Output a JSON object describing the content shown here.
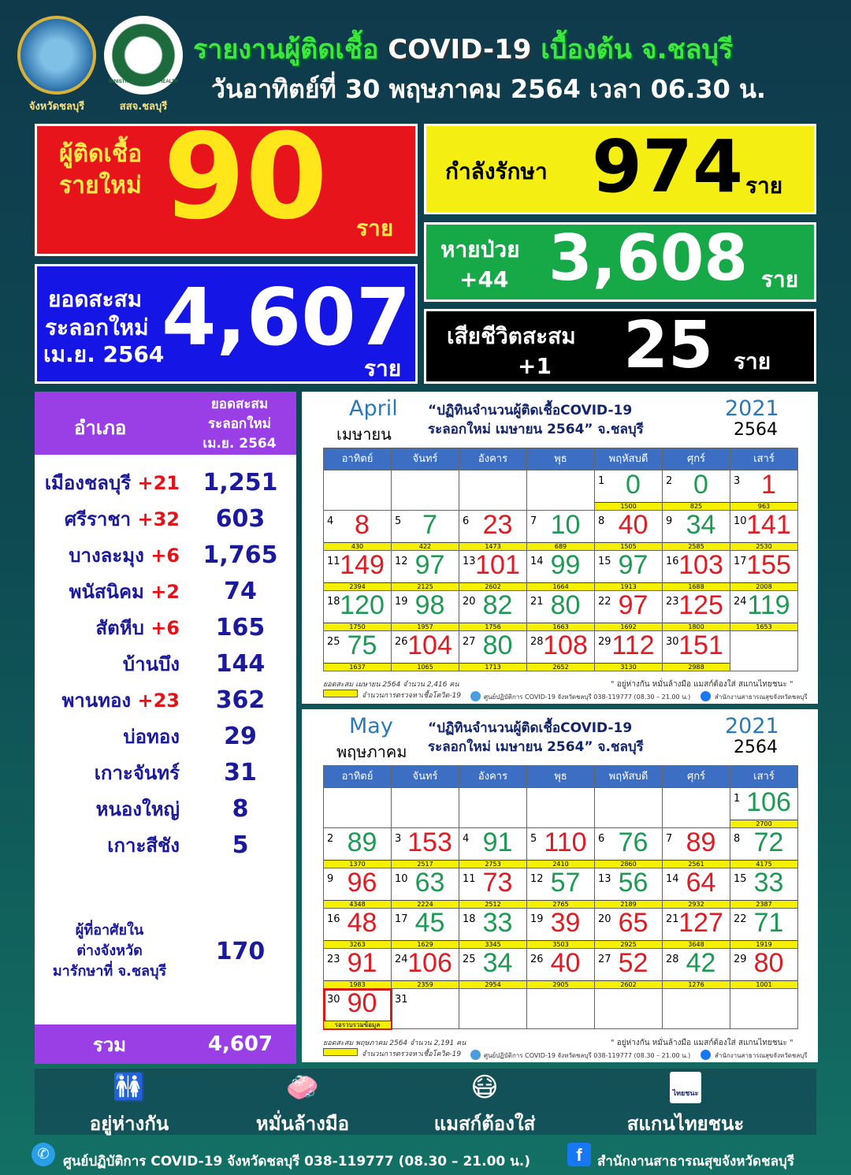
{
  "header": {
    "logo1_caption": "จังหวัดชลบุรี",
    "logo2_caption": "สสจ.ชลบุรี",
    "logo2_text": "MINISTRY OF PUBLIC HEALTH",
    "title_th1": "รายงานผู้ติดเชื้อ",
    "title_en": "COVID-19",
    "title_th2": "เบื้องต้น จ.ชลบุรี",
    "subtitle": "วันอาทิตย์ที่ 30 พฤษภาคม 2564 เวลา 06.30 น."
  },
  "stats": {
    "new_cases": {
      "label1": "ผู้ติดเชื้อ",
      "label2": "รายใหม่",
      "value": "90",
      "unit": "ราย",
      "color": "#e8141c"
    },
    "treating": {
      "label": "กำลังรักษา",
      "value": "974",
      "unit": "ราย",
      "color": "#f5ee12"
    },
    "recovered": {
      "label": "หายป่วย",
      "delta": "+44",
      "value": "3,608",
      "unit": "ราย",
      "color": "#17a847"
    },
    "cumulative": {
      "label1": "ยอดสะสม",
      "label2": "ระลอกใหม่",
      "label3": "เม.ย. 2564",
      "value": "4,607",
      "unit": "ราย",
      "color": "#1515e6"
    },
    "deaths": {
      "label": "เสียชีวิตสะสม",
      "delta": "+1",
      "value": "25",
      "unit": "ราย",
      "color": "#000000"
    }
  },
  "districts": {
    "header_col1": "อำเภอ",
    "header_col2_1": "ยอดสะสม",
    "header_col2_2": "ระลอกใหม่",
    "header_col2_3": "เม.ย. 2564",
    "rows": [
      {
        "name": "เมืองชลบุรี",
        "delta": "+21",
        "value": "1,251"
      },
      {
        "name": "ศรีราชา",
        "delta": "+32",
        "value": "603"
      },
      {
        "name": "บางละมุง",
        "delta": "+6",
        "value": "1,765"
      },
      {
        "name": "พนัสนิคม",
        "delta": "+2",
        "value": "74"
      },
      {
        "name": "สัตหีบ",
        "delta": "+6",
        "value": "165"
      },
      {
        "name": "บ้านบึง",
        "delta": "",
        "value": "144"
      },
      {
        "name": "พานทอง",
        "delta": "+23",
        "value": "362"
      },
      {
        "name": "บ่อทอง",
        "delta": "",
        "value": "29"
      },
      {
        "name": "เกาะจันทร์",
        "delta": "",
        "value": "31"
      },
      {
        "name": "หนองใหญ่",
        "delta": "",
        "value": "8"
      },
      {
        "name": "เกาะสีชัง",
        "delta": "",
        "value": "5"
      }
    ],
    "outside": {
      "line1": "ผู้ที่อาศัยใน",
      "line2": "ต่างจังหวัด",
      "line3": "มารักษาที่ จ.ชลบุรี",
      "value": "170"
    },
    "total": {
      "label": "รวม",
      "value": "4,607"
    }
  },
  "weekdays": [
    "อาทิตย์",
    "จันทร์",
    "อังคาร",
    "พุธ",
    "พฤหัสบดี",
    "ศุกร์",
    "เสาร์"
  ],
  "calendars": [
    {
      "month_en": "April",
      "month_th": "เมษายน",
      "title1": "“ปฏิทินจำนวนผู้ติดเชื้อCOVID-19",
      "title2": "ระลอกใหม่ เมษายน 2564” จ.ชลบุรี",
      "year": "2021",
      "year_th": "2564",
      "start_weekday": 4,
      "days": [
        [
          1,
          "0",
          "1500",
          "green"
        ],
        [
          2,
          "0",
          "825",
          "green"
        ],
        [
          3,
          "1",
          "963",
          "red"
        ],
        [
          4,
          "8",
          "430",
          "red"
        ],
        [
          5,
          "7",
          "422",
          "green"
        ],
        [
          6,
          "23",
          "1473",
          "red"
        ],
        [
          7,
          "10",
          "689",
          "green"
        ],
        [
          8,
          "40",
          "1505",
          "red"
        ],
        [
          9,
          "34",
          "2585",
          "green"
        ],
        [
          10,
          "141",
          "2530",
          "red"
        ],
        [
          11,
          "149",
          "2394",
          "red"
        ],
        [
          12,
          "97",
          "2125",
          "green"
        ],
        [
          13,
          "101",
          "2602",
          "red"
        ],
        [
          14,
          "99",
          "1664",
          "green"
        ],
        [
          15,
          "97",
          "1913",
          "green"
        ],
        [
          16,
          "103",
          "1688",
          "red"
        ],
        [
          17,
          "155",
          "2008",
          "red"
        ],
        [
          18,
          "120",
          "1750",
          "green"
        ],
        [
          19,
          "98",
          "1957",
          "green"
        ],
        [
          20,
          "82",
          "1756",
          "green"
        ],
        [
          21,
          "80",
          "1663",
          "green"
        ],
        [
          22,
          "97",
          "1692",
          "red"
        ],
        [
          23,
          "125",
          "1800",
          "red"
        ],
        [
          24,
          "119",
          "1653",
          "green"
        ],
        [
          25,
          "75",
          "1637",
          "green"
        ],
        [
          26,
          "104",
          "1065",
          "red"
        ],
        [
          27,
          "80",
          "1713",
          "green"
        ],
        [
          28,
          "108",
          "2652",
          "red"
        ],
        [
          29,
          "112",
          "3130",
          "red"
        ],
        [
          30,
          "151",
          "2988",
          "red"
        ]
      ],
      "footer_total": "ยอดสะสม เมษายน 2564 จำนวน 2,416 คน",
      "legend": "จำนวนการตรวจหาเชื้อโควิด-19",
      "slogan": "\" อยู่ห่างกัน หมั่นล้างมือ แมสก์ต้องใส่ สแกนไทยชนะ \"",
      "hotline": "ศูนย์ปฏิบัติการ COVID-19 จังหวัดชลบุรี 038-119777 (08.30 – 21.00 น.)",
      "office": "สำนักงานสาธารณสุขจังหวัดชลบุรี"
    },
    {
      "month_en": "May",
      "month_th": "พฤษภาคม",
      "title1": "“ปฏิทินจำนวนผู้ติดเชื้อCOVID-19",
      "title2": "ระลอกใหม่ เมษายน 2564” จ.ชลบุรี",
      "year": "2021",
      "year_th": "2564",
      "start_weekday": 6,
      "days": [
        [
          1,
          "106",
          "2700",
          "green"
        ],
        [
          2,
          "89",
          "1370",
          "green"
        ],
        [
          3,
          "153",
          "2517",
          "red"
        ],
        [
          4,
          "91",
          "2753",
          "green"
        ],
        [
          5,
          "110",
          "2410",
          "red"
        ],
        [
          6,
          "76",
          "2860",
          "green"
        ],
        [
          7,
          "89",
          "2561",
          "red"
        ],
        [
          8,
          "72",
          "4175",
          "green"
        ],
        [
          9,
          "96",
          "4348",
          "red"
        ],
        [
          10,
          "63",
          "2224",
          "green"
        ],
        [
          11,
          "73",
          "2512",
          "red"
        ],
        [
          12,
          "57",
          "2765",
          "green"
        ],
        [
          13,
          "56",
          "2189",
          "green"
        ],
        [
          14,
          "64",
          "2932",
          "red"
        ],
        [
          15,
          "33",
          "2387",
          "green"
        ],
        [
          16,
          "48",
          "3263",
          "red"
        ],
        [
          17,
          "45",
          "1629",
          "green"
        ],
        [
          18,
          "33",
          "3345",
          "green"
        ],
        [
          19,
          "39",
          "3503",
          "red"
        ],
        [
          20,
          "65",
          "2925",
          "red"
        ],
        [
          21,
          "127",
          "3648",
          "red"
        ],
        [
          22,
          "71",
          "1919",
          "green"
        ],
        [
          23,
          "91",
          "1983",
          "red"
        ],
        [
          24,
          "106",
          "2359",
          "red"
        ],
        [
          25,
          "34",
          "2954",
          "green"
        ],
        [
          26,
          "40",
          "2905",
          "red"
        ],
        [
          27,
          "52",
          "2602",
          "red"
        ],
        [
          28,
          "42",
          "1276",
          "green"
        ],
        [
          29,
          "80",
          "1001",
          "red"
        ],
        [
          30,
          "90",
          "รอรวบรวมข้อมูล",
          "red",
          "today"
        ],
        [
          31,
          "",
          "",
          ""
        ]
      ],
      "footer_total": "ยอดสะสม พฤษภาคม 2564 จำนวน 2,191 คน",
      "legend": "จำนวนการตรวจหาเชื้อโควิด-19",
      "slogan": "\" อยู่ห่างกัน หมั่นล้างมือ แมสก์ต้องใส่ สแกนไทยชนะ \"",
      "hotline": "ศูนย์ปฏิบัติการ COVID-19 จังหวัดชลบุรี 038-119777 (08.30 – 21.00 น.)",
      "office": "สำนักงานสาธารณสุขจังหวัดชลบุรี"
    }
  ],
  "measures": [
    {
      "label": "อยู่ห่างกัน",
      "icon": "distancing-icon"
    },
    {
      "label": "หมั่นล้างมือ",
      "icon": "handwash-icon"
    },
    {
      "label": "แมสก์ต้องใส่",
      "icon": "mask-icon"
    },
    {
      "label": "สแกนไทยชนะ",
      "icon": "thaichana-icon",
      "icon_text": "ไทยชนะ"
    }
  ],
  "footer": {
    "hotline": "ศูนย์ปฏิบัติการ COVID-19 จังหวัดชลบุรี 038-119777 (08.30 – 21.00 น.)",
    "office": "สำนักงานสาธารณสุขจังหวัดชลบุรี"
  }
}
